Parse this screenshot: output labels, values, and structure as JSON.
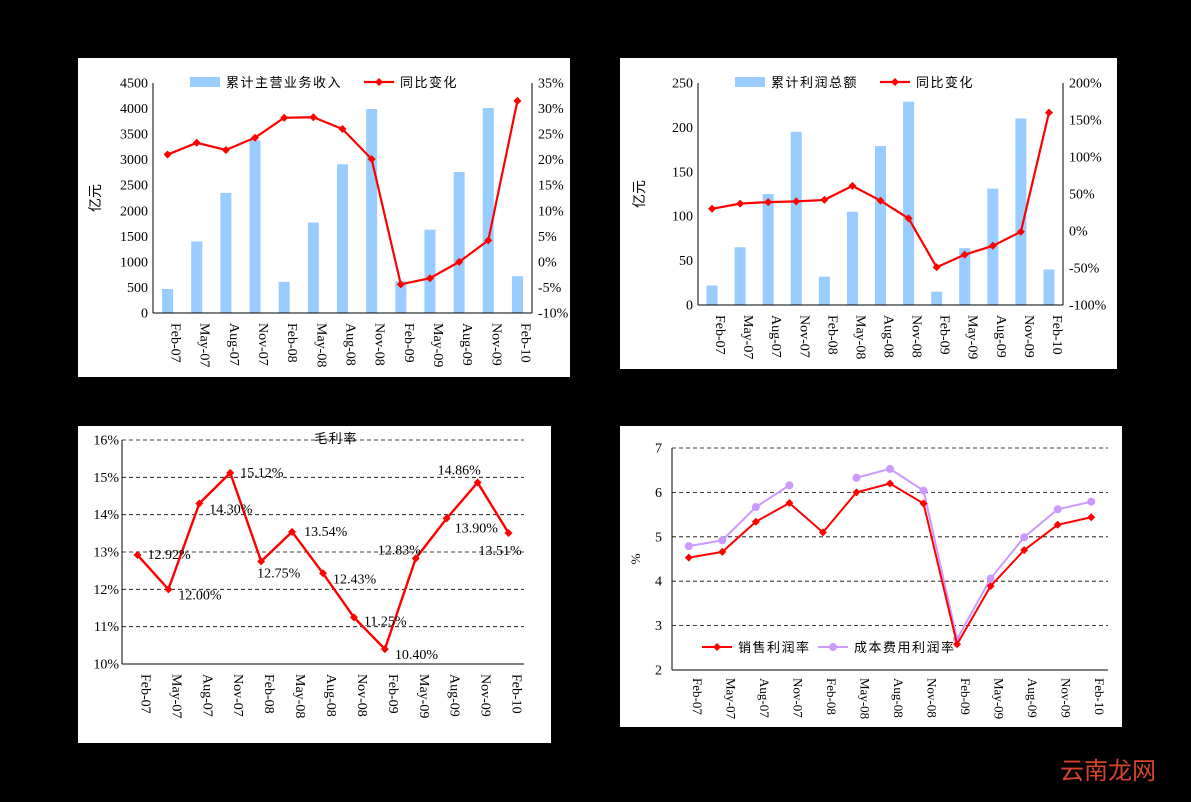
{
  "chart_data": [
    {
      "type": "bar+line",
      "categories": [
        "Feb-07",
        "May-07",
        "Aug-07",
        "Nov-07",
        "Feb-08",
        "May-08",
        "Aug-08",
        "Nov-08",
        "Feb-09",
        "May-09",
        "Aug-09",
        "Nov-09",
        "Feb-10"
      ],
      "series": [
        {
          "name": "累计主营业务收入",
          "type": "bar",
          "axis": "left",
          "color": "#99ccff",
          "values": [
            470,
            1400,
            2350,
            3380,
            610,
            1770,
            2910,
            3990,
            620,
            1630,
            2760,
            4010,
            720
          ]
        },
        {
          "name": "同比变化",
          "type": "line",
          "axis": "right",
          "color": "#ff0000",
          "values": [
            21.0,
            23.3,
            21.9,
            24.3,
            28.2,
            28.3,
            26.0,
            20.1,
            -4.4,
            -3.2,
            0.0,
            4.2,
            31.5
          ]
        }
      ],
      "ylabel": "亿元",
      "ylim": [
        0,
        4500
      ],
      "yticks": [
        "0",
        "500",
        "1000",
        "1500",
        "2000",
        "2500",
        "3000",
        "3500",
        "4000",
        "4500"
      ],
      "y2lim": [
        -10,
        35
      ],
      "y2ticks": [
        "-10%",
        "-5%",
        "0%",
        "5%",
        "10%",
        "15%",
        "20%",
        "25%",
        "30%",
        "35%"
      ],
      "legend": "top"
    },
    {
      "type": "bar+line",
      "categories": [
        "Feb-07",
        "May-07",
        "Aug-07",
        "Nov-07",
        "Feb-08",
        "May-08",
        "Aug-08",
        "Nov-08",
        "Feb-09",
        "May-09",
        "Aug-09",
        "Nov-09",
        "Feb-10"
      ],
      "series": [
        {
          "name": "累计利润总额",
          "type": "bar",
          "axis": "left",
          "color": "#99ccff",
          "values": [
            22,
            65,
            125,
            195,
            32,
            105,
            179,
            229,
            15,
            64,
            131,
            210,
            40
          ]
        },
        {
          "name": "同比变化",
          "type": "line",
          "axis": "right",
          "color": "#ff0000",
          "values": [
            30,
            37,
            39,
            40,
            42,
            61,
            41,
            17,
            -49,
            -32,
            -20,
            -1,
            160
          ]
        }
      ],
      "ylabel": "亿元",
      "ylim": [
        0,
        250
      ],
      "yticks": [
        "0",
        "50",
        "100",
        "150",
        "200",
        "250"
      ],
      "y2lim": [
        -100,
        200
      ],
      "y2ticks": [
        "-100%",
        "-50%",
        "0%",
        "50%",
        "100%",
        "150%",
        "200%"
      ],
      "legend": "top"
    },
    {
      "type": "line",
      "categories": [
        "Feb-07",
        "May-07",
        "Aug-07",
        "Nov-07",
        "Feb-08",
        "May-08",
        "Aug-08",
        "Nov-08",
        "Feb-09",
        "May-09",
        "Aug-09",
        "Nov-09",
        "Feb-10"
      ],
      "series": [
        {
          "name": "毛利率",
          "color": "#ff0000",
          "values": [
            12.92,
            12.0,
            14.3,
            15.12,
            12.75,
            13.54,
            12.43,
            11.25,
            10.4,
            12.83,
            13.9,
            14.86,
            13.51
          ]
        }
      ],
      "labels": [
        {
          "index": 0,
          "text": "12.92%"
        },
        {
          "index": 1,
          "text": "12.00%"
        },
        {
          "index": 2,
          "text": "14.30%"
        },
        {
          "index": 3,
          "text": "15.12%"
        },
        {
          "index": 4,
          "text": "12.75%"
        },
        {
          "index": 5,
          "text": "13.54%"
        },
        {
          "index": 6,
          "text": "12.43%"
        },
        {
          "index": 7,
          "text": "11.25%"
        },
        {
          "index": 8,
          "text": "10.40%"
        },
        {
          "index": 9,
          "text": "12.83%"
        },
        {
          "index": 10,
          "text": "13.90%"
        },
        {
          "index": 11,
          "text": "14.86%"
        },
        {
          "index": 12,
          "text": "13.51%"
        }
      ],
      "ylim": [
        10,
        16
      ],
      "yticks": [
        "10%",
        "11%",
        "12%",
        "13%",
        "14%",
        "15%",
        "16%"
      ],
      "legend": "top"
    },
    {
      "type": "line",
      "categories": [
        "Feb-07",
        "May-07",
        "Aug-07",
        "Nov-07",
        "Feb-08",
        "May-08",
        "Aug-08",
        "Nov-08",
        "Feb-09",
        "May-09",
        "Aug-09",
        "Nov-09",
        "Feb-10"
      ],
      "series": [
        {
          "name": "销售利润率",
          "color": "#ff0000",
          "marker": "diamond",
          "values": [
            4.53,
            4.66,
            5.34,
            5.76,
            5.1,
            6.0,
            6.2,
            5.75,
            2.58,
            3.89,
            4.7,
            5.27,
            5.44
          ]
        },
        {
          "name": "成本费用利润率",
          "color": "#cc99ff",
          "marker": "circle",
          "values": [
            4.79,
            4.92,
            5.67,
            6.16,
            null,
            6.33,
            6.53,
            6.04,
            2.7,
            4.06,
            4.99,
            5.62,
            5.79
          ]
        }
      ],
      "ylabel": "%",
      "ylim": [
        2,
        7
      ],
      "yticks": [
        "2",
        "3",
        "4",
        "5",
        "6",
        "7"
      ],
      "legend": "bottom"
    }
  ],
  "watermark": "云南龙网"
}
